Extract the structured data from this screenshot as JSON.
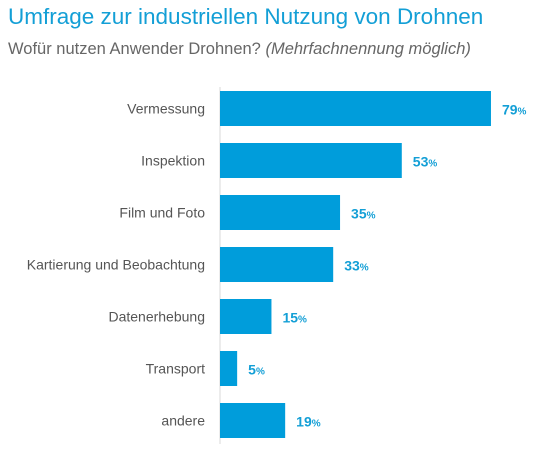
{
  "title": "Umfrage zur industriellen Nutzung von Drohnen",
  "subtitle": {
    "question": "Wofür nutzen Anwender Drohnen?",
    "note": "(Mehrfachnennung möglich)"
  },
  "colors": {
    "bar": "#009ddb",
    "title": "#139fd6",
    "label": "#555555",
    "value": "#139fd6"
  },
  "chart_data": {
    "type": "bar",
    "orientation": "horizontal",
    "categories": [
      "Vermessung",
      "Inspektion",
      "Film und Foto",
      "Kartierung und Beobachtung",
      "Datenerhebung",
      "Transport",
      "andere"
    ],
    "values": [
      79,
      53,
      35,
      33,
      15,
      5,
      19
    ],
    "unit": "%",
    "xlim": [
      0,
      100
    ],
    "grid": false,
    "legend": "none"
  }
}
